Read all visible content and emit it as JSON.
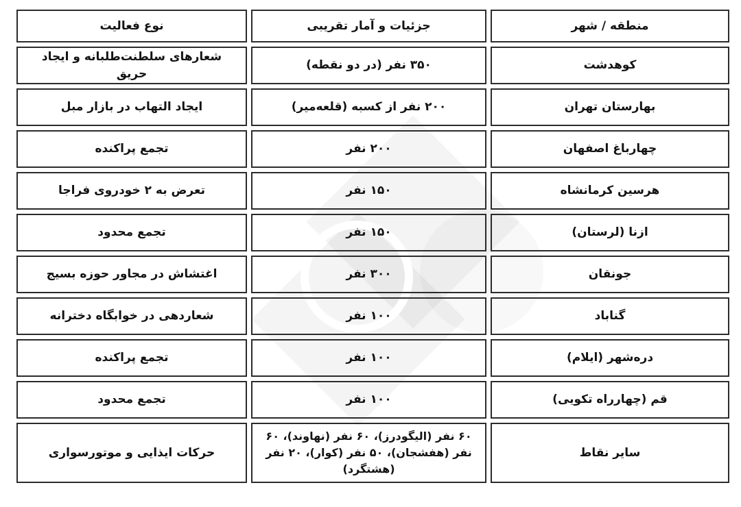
{
  "page": {
    "background_color": "#ffffff",
    "border_color": "#2b2b2b",
    "text_color": "#131313",
    "direction": "rtl",
    "watermark": {
      "shapes": [
        "diamond",
        "diamond",
        "circle",
        "ring"
      ],
      "color": "#f3f3f3"
    }
  },
  "table": {
    "headers": [
      "منطقه / شهر",
      "جزئیات و آمار تقریبی",
      "نوع فعالیت"
    ],
    "rows": [
      {
        "region": "کوهدشت",
        "details": "۳۵۰ نفر (در دو نقطه)",
        "activity": "شعارهای سلطنت‌طلبانه و ایجاد حریق"
      },
      {
        "region": "بهارستان تهران",
        "details": "۲۰۰ نفر از کسبه (قلعه‌میر)",
        "activity": "ایجاد التهاب در بازار مبل"
      },
      {
        "region": "چهارباغ اصفهان",
        "details": "۲۰۰ نفر",
        "activity": "تجمع پراکنده"
      },
      {
        "region": "هرسین کرمانشاه",
        "details": "۱۵۰ نفر",
        "activity": "تعرض به ۲ خودروی فراجا"
      },
      {
        "region": "ازنا (لرستان)",
        "details": "۱۵۰ نفر",
        "activity": "تجمع محدود"
      },
      {
        "region": "جونقان",
        "details": "۳۰۰ نفر",
        "activity": "اغتشاش در مجاور حوزه بسیج"
      },
      {
        "region": "گناباد",
        "details": "۱۰۰ نفر",
        "activity": "شعاردهی در خوابگاه دخترانه"
      },
      {
        "region": "دره‌شهر (ایلام)",
        "details": "۱۰۰ نفر",
        "activity": "تجمع پراکنده"
      },
      {
        "region": "قم (چهارراه تکویی)",
        "details": "۱۰۰ نفر",
        "activity": "تجمع محدود"
      },
      {
        "region": "سایر نقاط",
        "details": "۶۰ نفر (الیگودرز)، ۶۰ نفر (نهاوند)، ۶۰ نفر (هفشجان)، ۵۰ نفر (کوار)، ۲۰ نفر (هشتگرد)",
        "activity": "حرکات ایذایی و موتورسواری"
      }
    ]
  }
}
